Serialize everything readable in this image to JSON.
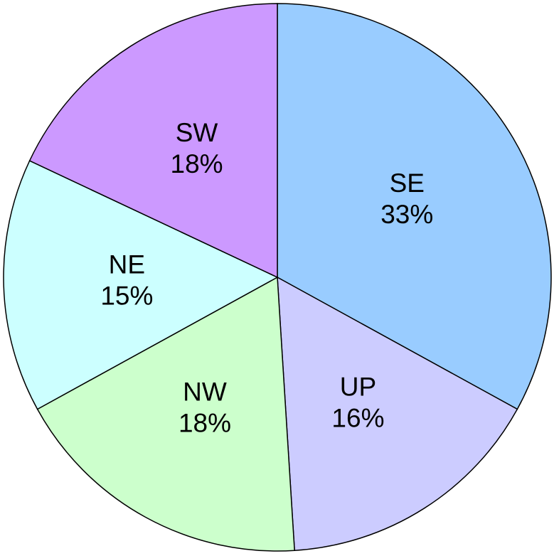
{
  "chart_data": {
    "type": "pie",
    "categories": [
      "SE",
      "UP",
      "NW",
      "NE",
      "SW"
    ],
    "values": [
      33,
      16,
      18,
      15,
      18
    ],
    "value_labels": [
      "33%",
      "16%",
      "18%",
      "15%",
      "18%"
    ],
    "colors": [
      "#99ccff",
      "#ccccff",
      "#ccffcc",
      "#ccffff",
      "#cc99ff"
    ]
  }
}
